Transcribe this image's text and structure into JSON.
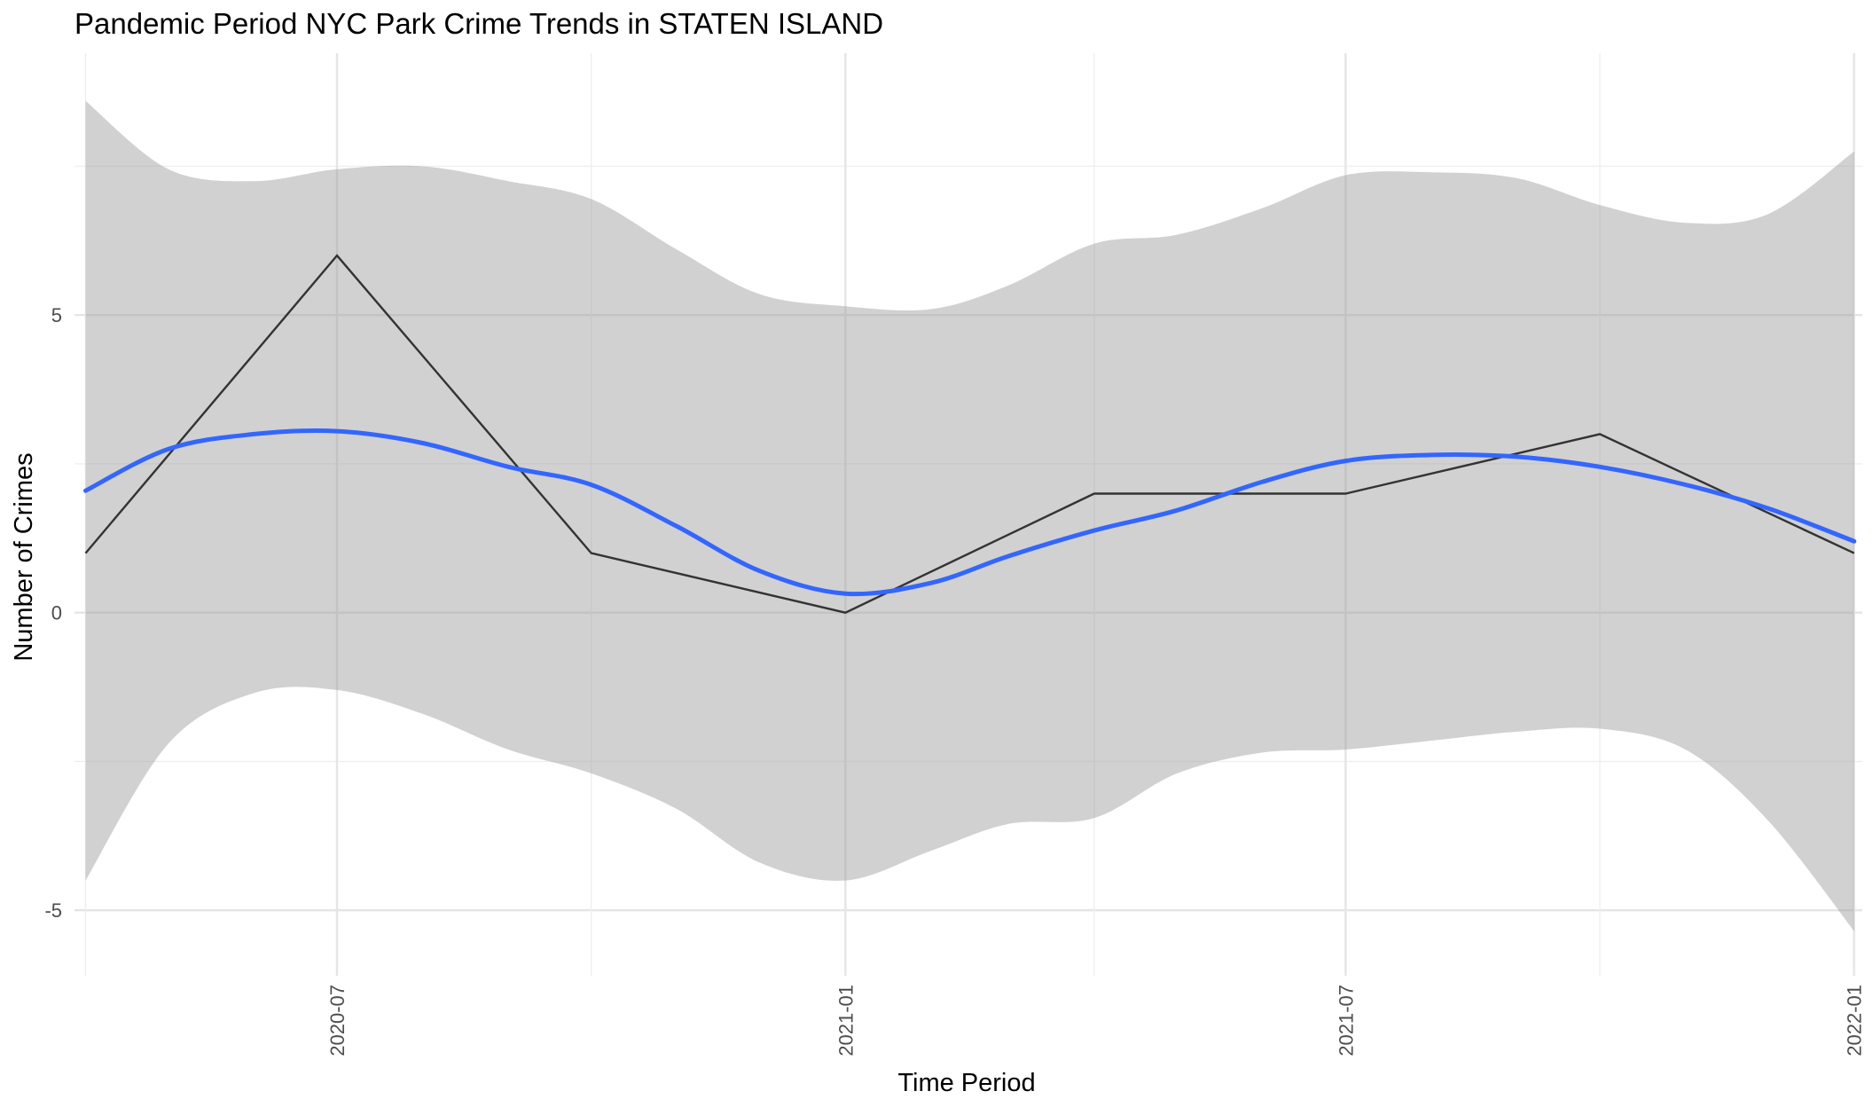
{
  "chart_data": {
    "type": "line",
    "title": "Pandemic Period NYC Park Crime Trends in STATEN ISLAND",
    "xlabel": "Time Period",
    "ylabel": "Number of Crimes",
    "x_axis": {
      "type": "date",
      "range": [
        "2020-03-28",
        "2022-01-04"
      ],
      "ticks": [
        "2020-07",
        "2021-01",
        "2021-07",
        "2022-01"
      ],
      "tick_dates": [
        "2020-07-01",
        "2021-01-01",
        "2021-07-01",
        "2022-01-01"
      ],
      "minor_dates": [
        "2020-04-01",
        "2020-10-01",
        "2021-04-01",
        "2021-10-01"
      ]
    },
    "y_axis": {
      "range": [
        -6.1,
        9.4
      ],
      "ticks": [
        -5,
        0,
        5
      ],
      "tick_labels": [
        "-5",
        "0",
        "5"
      ],
      "minor_ticks": [
        -2.5,
        2.5,
        7.5
      ]
    },
    "grid": true,
    "legend": "none",
    "series": [
      {
        "style": "observed",
        "color": "#333333",
        "x": [
          "2020-04-01",
          "2020-07-01",
          "2020-10-01",
          "2021-01-01",
          "2021-04-01",
          "2021-07-01",
          "2021-10-01",
          "2022-01-01"
        ],
        "y": [
          1,
          6,
          1,
          0,
          2,
          2,
          3,
          1
        ]
      },
      {
        "style": "smooth",
        "color": "#3366ff",
        "x": [
          "2020-04-01",
          "2020-05-01",
          "2020-06-01",
          "2020-07-01",
          "2020-08-01",
          "2020-09-01",
          "2020-10-01",
          "2020-11-01",
          "2020-12-01",
          "2021-01-01",
          "2021-02-01",
          "2021-03-01",
          "2021-04-01",
          "2021-05-01",
          "2021-06-01",
          "2021-07-01",
          "2021-08-01",
          "2021-09-01",
          "2021-10-01",
          "2021-11-01",
          "2021-12-01",
          "2022-01-01"
        ],
        "y": [
          2.05,
          2.75,
          3.0,
          3.05,
          2.85,
          2.45,
          2.15,
          1.45,
          0.7,
          0.32,
          0.5,
          0.95,
          1.38,
          1.72,
          2.2,
          2.55,
          2.65,
          2.62,
          2.45,
          2.15,
          1.75,
          1.2
        ],
        "ci_lower": [
          -4.5,
          -2.2,
          -1.35,
          -1.3,
          -1.7,
          -2.3,
          -2.7,
          -3.3,
          -4.2,
          -4.5,
          -4.0,
          -3.55,
          -3.45,
          -2.7,
          -2.35,
          -2.3,
          -2.15,
          -2.0,
          -1.95,
          -2.3,
          -3.5,
          -5.35
        ],
        "ci_upper": [
          8.6,
          7.45,
          7.25,
          7.45,
          7.5,
          7.25,
          6.95,
          6.1,
          5.35,
          5.15,
          5.1,
          5.5,
          6.2,
          6.35,
          6.8,
          7.35,
          7.4,
          7.3,
          6.85,
          6.55,
          6.7,
          7.75
        ]
      }
    ]
  }
}
